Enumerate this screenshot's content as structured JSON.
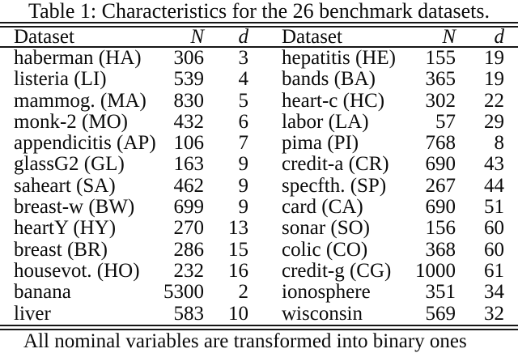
{
  "title": "Table 1: Characteristics for the 26 benchmark datasets.",
  "footnote": "All nominal variables are transformed into binary ones",
  "table": {
    "columns": [
      {
        "label": "Dataset",
        "italic": false,
        "align": "left"
      },
      {
        "label": "N",
        "italic": true,
        "align": "right"
      },
      {
        "label": "d",
        "italic": true,
        "align": "right"
      },
      {
        "label": "Dataset",
        "italic": false,
        "align": "left"
      },
      {
        "label": "N",
        "italic": true,
        "align": "right"
      },
      {
        "label": "d",
        "italic": true,
        "align": "right"
      }
    ],
    "rows": [
      [
        "haberman (HA)",
        "306",
        "3",
        "hepatitis (HE)",
        "155",
        "19"
      ],
      [
        "listeria (LI)",
        "539",
        "4",
        "bands (BA)",
        "365",
        "19"
      ],
      [
        "mammog. (MA)",
        "830",
        "5",
        "heart-c (HC)",
        "302",
        "22"
      ],
      [
        "monk-2 (MO)",
        "432",
        "6",
        "labor (LA)",
        "57",
        "29"
      ],
      [
        "appendicitis (AP)",
        "106",
        "7",
        "pima (PI)",
        "768",
        "8"
      ],
      [
        "glassG2 (GL)",
        "163",
        "9",
        "credit-a (CR)",
        "690",
        "43"
      ],
      [
        "saheart (SA)",
        "462",
        "9",
        "specfth. (SP)",
        "267",
        "44"
      ],
      [
        "breast-w (BW)",
        "699",
        "9",
        "card (CA)",
        "690",
        "51"
      ],
      [
        "heartY (HY)",
        "270",
        "13",
        "sonar (SO)",
        "156",
        "60"
      ],
      [
        "breast (BR)",
        "286",
        "15",
        "colic (CO)",
        "368",
        "60"
      ],
      [
        "housevot. (HO)",
        "232",
        "16",
        "credit-g (CG)",
        "1000",
        "61"
      ],
      [
        "banana",
        "5300",
        "2",
        "ionosphere",
        "351",
        "34"
      ],
      [
        "liver",
        "583",
        "10",
        "wisconsin",
        "569",
        "32"
      ]
    ]
  }
}
